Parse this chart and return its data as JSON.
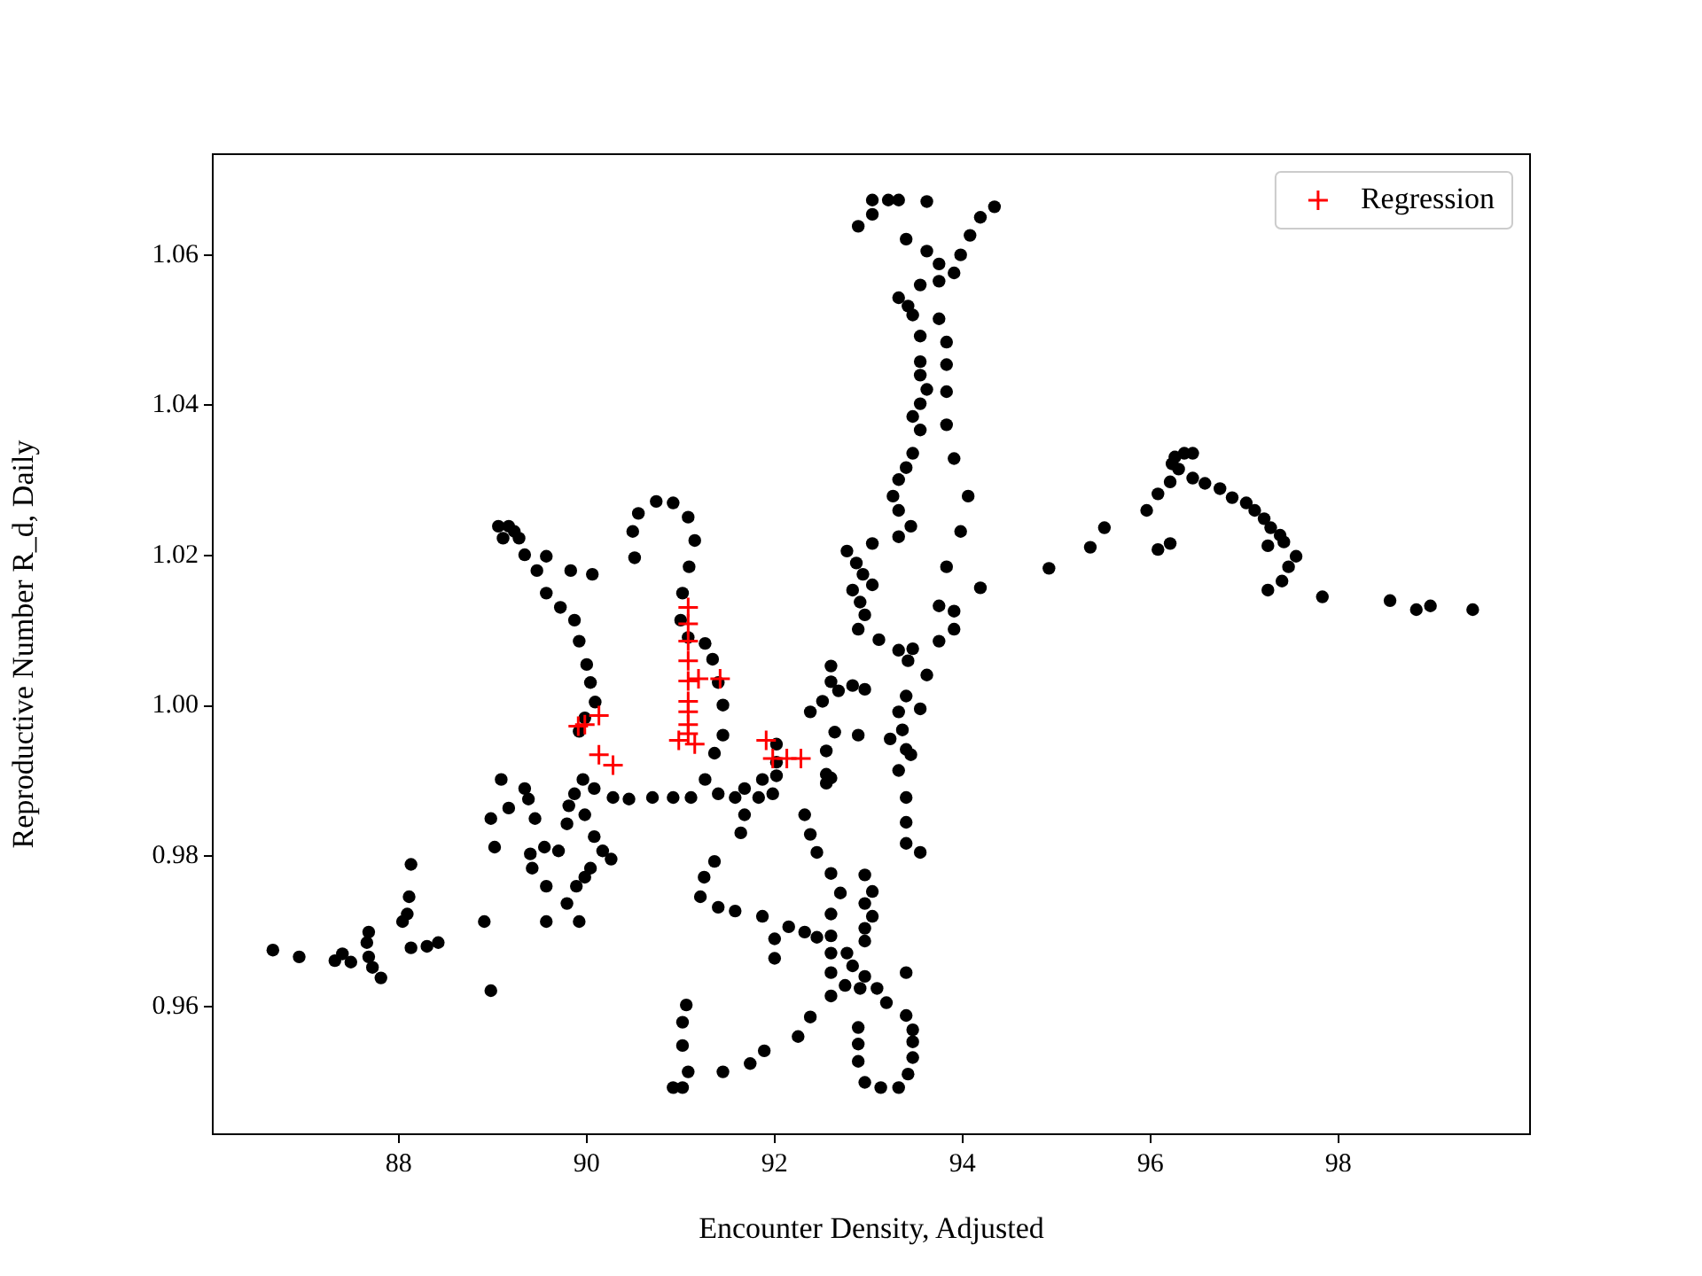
{
  "chart_data": {
    "type": "scatter",
    "xlabel": "Encounter Density, Adjusted",
    "ylabel": "Reproductive Number R_d, Daily",
    "xlim": [
      86.02,
      100.04
    ],
    "ylim": [
      0.943,
      1.0734
    ],
    "xticks": [
      88,
      90,
      92,
      94,
      96,
      98
    ],
    "yticks": [
      0.96,
      0.98,
      {
        "value": 1.0,
        "label": "1.00"
      },
      1.02,
      1.04,
      1.06
    ],
    "legend": "top right",
    "series": [
      {
        "color": "#000000",
        "marker": "circle",
        "x": [
          86.66,
          86.94,
          87.32,
          87.4,
          87.49,
          87.66,
          87.68,
          87.68,
          87.72,
          87.81,
          88.11,
          88.09,
          88.04,
          88.13,
          88.13,
          88.3,
          88.42,
          88.91,
          88.98,
          88.98,
          89.17,
          89.02,
          89.09,
          89.34,
          89.38,
          89.45,
          89.4,
          89.42,
          89.55,
          89.57,
          89.57,
          89.7,
          89.79,
          89.81,
          89.87,
          89.96,
          89.92,
          89.79,
          89.89,
          89.98,
          90.04,
          90.17,
          90.26,
          90.08,
          89.98,
          89.92,
          89.98,
          90.09,
          90.04,
          90.0,
          89.92,
          89.87,
          89.72,
          89.57,
          89.47,
          89.34,
          89.28,
          89.23,
          89.17,
          89.06,
          89.11,
          89.57,
          89.83,
          90.06,
          90.51,
          90.49,
          90.55,
          90.74,
          90.92,
          91.08,
          91.15,
          91.09,
          91.02,
          91.0,
          91.08,
          91.26,
          91.34,
          91.4,
          91.45,
          91.45,
          91.36,
          91.26,
          91.11,
          90.92,
          90.7,
          90.45,
          90.28,
          90.08,
          91.4,
          91.58,
          91.68,
          91.83,
          91.98,
          92.02,
          92.02,
          92.02,
          91.87,
          91.68,
          91.64,
          91.36,
          91.25,
          91.21,
          91.4,
          91.58,
          91.87,
          92.0,
          92.0,
          91.06,
          91.02,
          91.02,
          91.08,
          90.92,
          91.02,
          91.45,
          91.74,
          91.89,
          93.04,
          93.21,
          93.32,
          93.62,
          92.89,
          93.04,
          93.4,
          93.62,
          93.75,
          93.98,
          94.08,
          94.19,
          94.34,
          93.91,
          93.75,
          93.55,
          93.32,
          93.42,
          93.47,
          93.55,
          93.55,
          93.55,
          93.62,
          93.55,
          93.47,
          93.55,
          93.47,
          93.4,
          93.32,
          93.26,
          93.32,
          93.45,
          93.32,
          93.75,
          93.83,
          93.83,
          93.83,
          93.83,
          93.91,
          94.06,
          93.98,
          93.83,
          94.19,
          93.75,
          93.91,
          93.91,
          93.75,
          93.04,
          92.77,
          92.87,
          92.94,
          93.04,
          92.83,
          92.91,
          92.96,
          92.89,
          93.11,
          93.32,
          93.47,
          93.42,
          93.62,
          92.6,
          92.6,
          92.68,
          92.83,
          92.96,
          92.51,
          92.38,
          92.89,
          92.64,
          93.4,
          93.32,
          93.55,
          93.36,
          93.23,
          93.4,
          93.45,
          93.32,
          93.4,
          93.4,
          93.4,
          93.55,
          92.55,
          92.55,
          92.6,
          92.55,
          92.32,
          92.38,
          92.45,
          92.6,
          92.7,
          92.6,
          92.6,
          92.96,
          93.04,
          92.96,
          93.04,
          92.96,
          92.96,
          92.6,
          92.77,
          92.83,
          92.75,
          92.6,
          92.6,
          92.91,
          92.96,
          93.09,
          93.19,
          93.4,
          93.4,
          93.47,
          93.47,
          93.47,
          93.42,
          93.32,
          93.13,
          92.96,
          92.89,
          92.89,
          92.89,
          92.38,
          92.25,
          92.15,
          92.32,
          92.45,
          94.92,
          95.36,
          95.51,
          95.96,
          96.08,
          96.21,
          96.23,
          96.26,
          96.36,
          96.45,
          96.3,
          96.45,
          96.58,
          96.74,
          96.87,
          97.02,
          97.11,
          97.21,
          97.28,
          97.38,
          97.42,
          97.25,
          97.55,
          97.47,
          97.4,
          97.25,
          97.83,
          98.55,
          98.83,
          98.98,
          99.43,
          96.08,
          96.21
        ],
        "values": [
          0.9675,
          0.9666,
          0.9661,
          0.967,
          0.9659,
          0.9685,
          0.9699,
          0.9666,
          0.9652,
          0.9638,
          0.9746,
          0.9723,
          0.9713,
          0.9789,
          0.9678,
          0.968,
          0.9685,
          0.9713,
          0.9621,
          0.985,
          0.9864,
          0.9812,
          0.9902,
          0.989,
          0.9876,
          0.985,
          0.9803,
          0.9784,
          0.9812,
          0.976,
          0.9713,
          0.9807,
          0.9843,
          0.9867,
          0.9883,
          0.9902,
          0.9713,
          0.9737,
          0.976,
          0.9772,
          0.9784,
          0.9807,
          0.9796,
          0.9826,
          0.9855,
          0.9966,
          0.9984,
          1.0005,
          1.0031,
          1.0055,
          1.0086,
          1.0114,
          1.0131,
          1.015,
          1.018,
          1.0201,
          1.0223,
          1.0232,
          1.0239,
          1.0239,
          1.0223,
          1.0199,
          1.018,
          1.0175,
          1.0197,
          1.0232,
          1.0256,
          1.0272,
          1.027,
          1.0251,
          1.022,
          1.0185,
          1.015,
          1.0114,
          1.0091,
          1.0083,
          1.0062,
          1.0031,
          1.0001,
          0.9961,
          0.9937,
          0.9902,
          0.9878,
          0.9878,
          0.9878,
          0.9876,
          0.9878,
          0.989,
          0.9883,
          0.9878,
          0.9855,
          0.9878,
          0.9883,
          0.9949,
          0.9925,
          0.9907,
          0.9902,
          0.989,
          0.9831,
          0.9793,
          0.9772,
          0.9746,
          0.9732,
          0.9727,
          0.972,
          0.9664,
          0.969,
          0.9602,
          0.9579,
          0.9548,
          0.9513,
          0.9492,
          0.9492,
          0.9513,
          0.9524,
          0.9541,
          1.0673,
          1.0673,
          1.0673,
          1.0671,
          1.0638,
          1.0654,
          1.0621,
          1.0605,
          1.0588,
          1.06,
          1.0626,
          1.065,
          1.0664,
          1.0576,
          1.0565,
          1.056,
          1.0543,
          1.0532,
          1.052,
          1.0492,
          1.0458,
          1.044,
          1.0421,
          1.0402,
          1.0385,
          1.0367,
          1.0336,
          1.0317,
          1.0301,
          1.0279,
          1.026,
          1.0239,
          1.0225,
          1.0515,
          1.0484,
          1.0454,
          1.0418,
          1.0374,
          1.0329,
          1.0279,
          1.0232,
          1.0185,
          1.0157,
          1.0133,
          1.0126,
          1.0102,
          1.0086,
          1.0216,
          1.0206,
          1.019,
          1.0175,
          1.0161,
          1.0154,
          1.0138,
          1.0121,
          1.0102,
          1.0088,
          1.0074,
          1.0076,
          1.006,
          1.0041,
          1.0053,
          1.0032,
          1.002,
          1.0027,
          1.0022,
          1.0006,
          0.9992,
          0.9961,
          0.9965,
          1.0013,
          0.9992,
          0.9996,
          0.9968,
          0.9956,
          0.9942,
          0.9935,
          0.9914,
          0.9878,
          0.9845,
          0.9817,
          0.9805,
          0.994,
          0.9909,
          0.9904,
          0.9897,
          0.9855,
          0.9829,
          0.9805,
          0.9777,
          0.9751,
          0.9723,
          0.9694,
          0.9775,
          0.9753,
          0.9737,
          0.972,
          0.9704,
          0.9687,
          0.9671,
          0.9671,
          0.9654,
          0.9628,
          0.9645,
          0.9614,
          0.9624,
          0.964,
          0.9624,
          0.9605,
          0.9645,
          0.9588,
          0.9569,
          0.9553,
          0.9532,
          0.951,
          0.9492,
          0.9492,
          0.9499,
          0.9527,
          0.955,
          0.9572,
          0.9586,
          0.956,
          0.9706,
          0.9699,
          0.9692,
          1.0183,
          1.0211,
          1.0237,
          1.026,
          1.0282,
          1.0298,
          1.0322,
          1.0331,
          1.0336,
          1.0336,
          1.0315,
          1.0303,
          1.0296,
          1.0289,
          1.0277,
          1.027,
          1.026,
          1.0249,
          1.0237,
          1.0227,
          1.0218,
          1.0213,
          1.0199,
          1.0185,
          1.0166,
          1.0154,
          1.0145,
          1.014,
          1.0128,
          1.0133,
          1.0128,
          1.0208,
          1.0216
        ]
      },
      {
        "name": "Regression",
        "color": "#ff0000",
        "marker": "cross",
        "x": [
          89.98,
          89.91,
          90.13,
          90.13,
          90.28,
          91.08,
          91.08,
          91.08,
          91.08,
          91.08,
          91.19,
          91.42,
          91.08,
          91.08,
          91.08,
          91.08,
          90.98,
          91.15,
          91.91,
          91.98,
          92.13,
          92.28
        ],
        "values": [
          0.9975,
          0.9973,
          0.9987,
          0.9935,
          0.9921,
          1.0131,
          1.0109,
          1.0086,
          1.006,
          1.0033,
          1.0036,
          1.0036,
          1.0006,
          0.9992,
          0.9975,
          0.9963,
          0.9954,
          0.9949,
          0.9954,
          0.993,
          0.993,
          0.993
        ]
      }
    ]
  }
}
